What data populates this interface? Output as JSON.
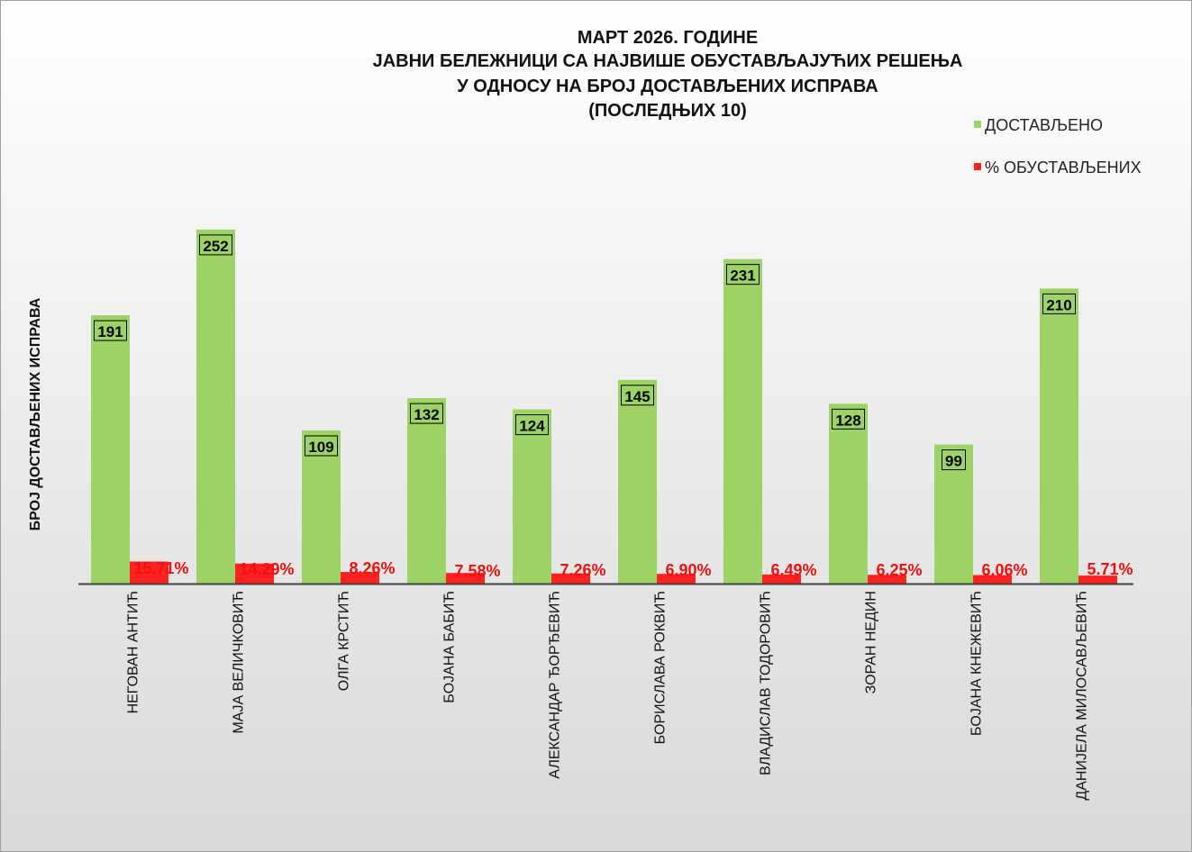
{
  "chart_data": {
    "type": "bar",
    "title": [
      "МАРТ 2026. ГОДИНЕ",
      "ЈАВНИ БЕЛЕЖНИЦИ СА НАЈВИШЕ ОБУСТАВЉАЈУЋИХ РЕШЕЊА",
      "У ОДНОСУ НА БРОЈ ДОСТАВЉЕНИХ ИСПРАВА",
      "(ПОСЛЕДЊИХ 10)"
    ],
    "ylabel": "БРОЈ ДОСТАВЉЕНИХ ИСПРАВА",
    "xlabel": "",
    "ylim": [
      0,
      300
    ],
    "grid": false,
    "legend_placement": "top-right",
    "categories": [
      "НЕГОВАН АНТИЋ",
      "МАЈА ВЕЛИЧКОВИЋ",
      "ОЛГА КРСТИЋ",
      "БОЈАНА БАБИЋ",
      "АЛЕКСАНДАР ЂОРЂЕВИЋ",
      "БОРИСЛАВА РОКВИЋ",
      "ВЛАДИСЛАВ ТОДОРОВИЋ",
      "ЗОРАН НЕДИН",
      "БОЈАНА КНЕЖЕВИЋ",
      "ДАНИЈЕЛА МИЛОСАВЉЕВИЋ"
    ],
    "series": [
      {
        "name": "ДОСТАВЉЕНО",
        "color": "#9dd264",
        "values": [
          191,
          252,
          109,
          132,
          124,
          145,
          231,
          128,
          99,
          210
        ],
        "labels": [
          "191",
          "252",
          "109",
          "132",
          "124",
          "145",
          "231",
          "128",
          "99",
          "210"
        ]
      },
      {
        "name": "% ОБУСТАВЉЕНИХ",
        "color": "#ff2020",
        "values": [
          15.71,
          14.29,
          8.26,
          7.58,
          7.26,
          6.9,
          6.49,
          6.25,
          6.06,
          5.71
        ],
        "labels": [
          "15.71%",
          "14.29%",
          "8.26%",
          "7.58%",
          "7.26%",
          "6.90%",
          "6.49%",
          "6.25%",
          "6.06%",
          "5.71%"
        ]
      }
    ]
  }
}
